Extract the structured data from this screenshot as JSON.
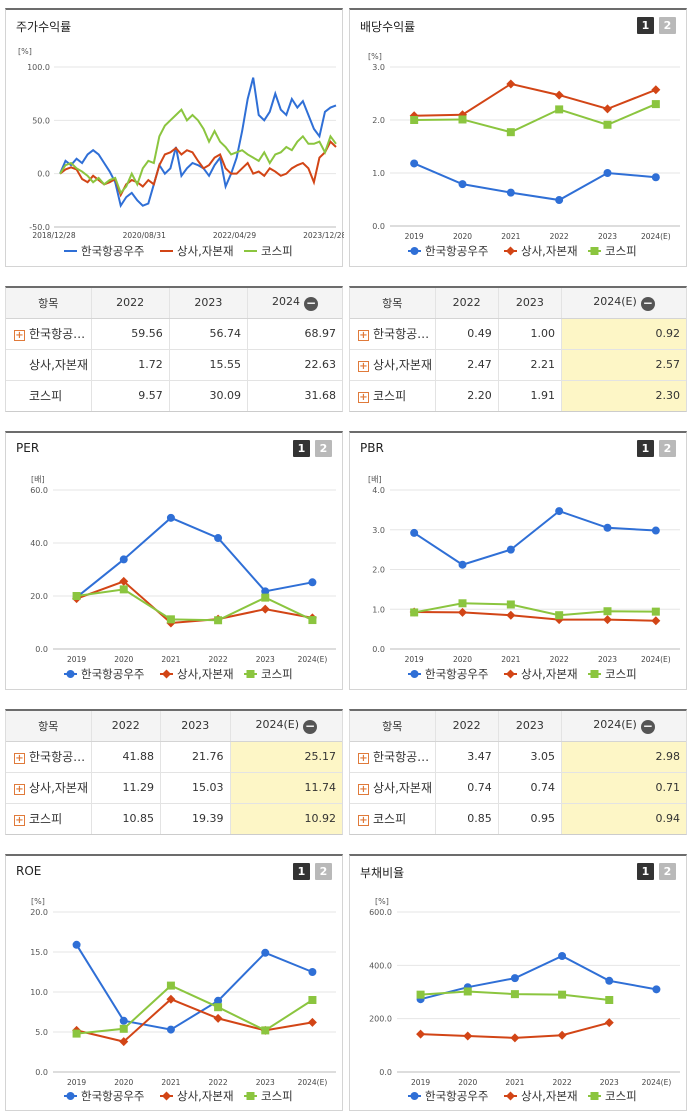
{
  "legend_names": [
    "한국항공우주",
    "상사,자본재",
    "코스피"
  ],
  "colors": {
    "company": "#2f6fd6",
    "sector": "#d24516",
    "kospi": "#8bc53f"
  },
  "pager": [
    "1",
    "2"
  ],
  "stock_card": {
    "title": "주가수익률",
    "chart_data": {
      "type": "line",
      "unit": "[%]",
      "yticks": [
        "100.0",
        "50.0",
        "0.0",
        "-50.0"
      ],
      "ylim": [
        -50,
        100
      ],
      "xticks": [
        "2018/12/28",
        "2020/08/31",
        "2022/04/29",
        "2023/12/28"
      ],
      "xtick_pos": [
        0,
        0.32,
        0.64,
        0.96
      ],
      "series": [
        {
          "name": "한국항공우주",
          "color": "#2f6fd6",
          "values": [
            0,
            12,
            8,
            14,
            10,
            18,
            22,
            18,
            10,
            2,
            -8,
            -30,
            -22,
            -18,
            -25,
            -30,
            -28,
            -10,
            8,
            0,
            5,
            25,
            -2,
            5,
            10,
            8,
            5,
            -2,
            8,
            15,
            -12,
            0,
            15,
            40,
            70,
            90,
            55,
            50,
            58,
            75,
            60,
            55,
            70,
            62,
            68,
            55,
            42,
            35,
            58,
            62,
            64
          ]
        },
        {
          "name": "상사,자본재",
          "color": "#d24516",
          "values": [
            0,
            4,
            6,
            4,
            -5,
            -8,
            -2,
            -6,
            -10,
            -8,
            -5,
            -20,
            -10,
            -6,
            -8,
            -12,
            -6,
            -10,
            8,
            18,
            20,
            24,
            18,
            22,
            20,
            12,
            5,
            8,
            15,
            18,
            5,
            0,
            0,
            5,
            10,
            0,
            2,
            -2,
            5,
            2,
            -2,
            0,
            5,
            8,
            10,
            5,
            -8,
            15,
            20,
            30,
            25
          ]
        },
        {
          "name": "코스피",
          "color": "#8bc53f",
          "values": [
            0,
            8,
            10,
            5,
            2,
            -2,
            -8,
            -4,
            -10,
            -6,
            -4,
            -18,
            -12,
            0,
            -10,
            5,
            12,
            10,
            35,
            45,
            50,
            55,
            60,
            50,
            55,
            50,
            42,
            30,
            40,
            30,
            25,
            18,
            20,
            22,
            18,
            15,
            12,
            20,
            10,
            18,
            20,
            25,
            22,
            30,
            35,
            28,
            28,
            30,
            20,
            35,
            28
          ]
        }
      ]
    }
  },
  "stock_table": {
    "header": [
      "항목",
      "2022",
      "2023",
      "2024"
    ],
    "rows": [
      {
        "name": "한국항공…",
        "plus": true,
        "values": [
          "59.56",
          "56.74",
          "68.97"
        ]
      },
      {
        "name": "상사,자본재",
        "plus": false,
        "values": [
          "1.72",
          "15.55",
          "22.63"
        ]
      },
      {
        "name": "코스피",
        "plus": false,
        "values": [
          "9.57",
          "30.09",
          "31.68"
        ]
      }
    ]
  },
  "div_card": {
    "title": "배당수익률",
    "chart_data": {
      "type": "line",
      "unit": "[%]",
      "yticks": [
        "3.0",
        "2.0",
        "1.0",
        "0.0"
      ],
      "ylim": [
        0,
        3
      ],
      "categories": [
        "2019",
        "2020",
        "2021",
        "2022",
        "2023",
        "2024(E)"
      ],
      "series": [
        {
          "name": "한국항공우주",
          "color": "#2f6fd6",
          "marker": "circle",
          "values": [
            1.18,
            0.79,
            0.63,
            0.49,
            1.0,
            0.92
          ]
        },
        {
          "name": "상사,자본재",
          "color": "#d24516",
          "marker": "diamond",
          "values": [
            2.08,
            2.1,
            2.68,
            2.47,
            2.21,
            2.57
          ]
        },
        {
          "name": "코스피",
          "color": "#8bc53f",
          "marker": "square",
          "values": [
            2.0,
            2.01,
            1.77,
            2.2,
            1.91,
            2.3
          ]
        }
      ]
    }
  },
  "div_table": {
    "header": [
      "항목",
      "2022",
      "2023",
      "2024(E)"
    ],
    "rows": [
      {
        "name": "한국항공…",
        "plus": true,
        "values": [
          "0.49",
          "1.00",
          "0.92"
        ]
      },
      {
        "name": "상사,자본재",
        "plus": true,
        "values": [
          "2.47",
          "2.21",
          "2.57"
        ]
      },
      {
        "name": "코스피",
        "plus": true,
        "values": [
          "2.20",
          "1.91",
          "2.30"
        ]
      }
    ]
  },
  "per_card": {
    "title": "PER",
    "chart_data": {
      "type": "line",
      "unit": "[배]",
      "yticks": [
        "60.0",
        "40.0",
        "20.0",
        "0.0"
      ],
      "ylim": [
        0,
        60
      ],
      "categories": [
        "2019",
        "2020",
        "2021",
        "2022",
        "2023",
        "2024(E)"
      ],
      "series": [
        {
          "name": "한국항공우주",
          "color": "#2f6fd6",
          "marker": "circle",
          "values": [
            19.5,
            33.8,
            49.5,
            41.88,
            21.76,
            25.17
          ]
        },
        {
          "name": "상사,자본재",
          "color": "#d24516",
          "marker": "diamond",
          "values": [
            19.0,
            25.5,
            9.8,
            11.29,
            15.03,
            11.74
          ]
        },
        {
          "name": "코스피",
          "color": "#8bc53f",
          "marker": "square",
          "values": [
            20.0,
            22.5,
            11.2,
            10.85,
            19.39,
            10.92
          ]
        }
      ]
    }
  },
  "per_table": {
    "header": [
      "항목",
      "2022",
      "2023",
      "2024(E)"
    ],
    "rows": [
      {
        "name": "한국항공…",
        "plus": true,
        "values": [
          "41.88",
          "21.76",
          "25.17"
        ]
      },
      {
        "name": "상사,자본재",
        "plus": true,
        "values": [
          "11.29",
          "15.03",
          "11.74"
        ]
      },
      {
        "name": "코스피",
        "plus": true,
        "values": [
          "10.85",
          "19.39",
          "10.92"
        ]
      }
    ]
  },
  "pbr_card": {
    "title": "PBR",
    "chart_data": {
      "type": "line",
      "unit": "[배]",
      "yticks": [
        "4.0",
        "3.0",
        "2.0",
        "1.0",
        "0.0"
      ],
      "ylim": [
        0,
        4
      ],
      "categories": [
        "2019",
        "2020",
        "2021",
        "2022",
        "2023",
        "2024(E)"
      ],
      "series": [
        {
          "name": "한국항공우주",
          "color": "#2f6fd6",
          "marker": "circle",
          "values": [
            2.92,
            2.12,
            2.5,
            3.47,
            3.05,
            2.98
          ]
        },
        {
          "name": "상사,자본재",
          "color": "#d24516",
          "marker": "diamond",
          "values": [
            0.93,
            0.92,
            0.85,
            0.74,
            0.74,
            0.71
          ]
        },
        {
          "name": "코스피",
          "color": "#8bc53f",
          "marker": "square",
          "values": [
            0.92,
            1.15,
            1.12,
            0.85,
            0.95,
            0.94
          ]
        }
      ]
    }
  },
  "pbr_table": {
    "header": [
      "항목",
      "2022",
      "2023",
      "2024(E)"
    ],
    "rows": [
      {
        "name": "한국항공…",
        "plus": true,
        "values": [
          "3.47",
          "3.05",
          "2.98"
        ]
      },
      {
        "name": "상사,자본재",
        "plus": true,
        "values": [
          "0.74",
          "0.74",
          "0.71"
        ]
      },
      {
        "name": "코스피",
        "plus": true,
        "values": [
          "0.85",
          "0.95",
          "0.94"
        ]
      }
    ]
  },
  "roe_card": {
    "title": "ROE",
    "chart_data": {
      "type": "line",
      "unit": "[%]",
      "yticks": [
        "20.0",
        "15.0",
        "10.0",
        "5.0",
        "0.0"
      ],
      "ylim": [
        0,
        20
      ],
      "categories": [
        "2019",
        "2020",
        "2021",
        "2022",
        "2023",
        "2024(E)"
      ],
      "series": [
        {
          "name": "한국항공우주",
          "color": "#2f6fd6",
          "marker": "circle",
          "values": [
            15.9,
            6.4,
            5.3,
            8.9,
            14.9,
            12.5
          ]
        },
        {
          "name": "상사,자본재",
          "color": "#d24516",
          "marker": "diamond",
          "values": [
            5.2,
            3.8,
            9.1,
            6.7,
            5.2,
            6.2
          ]
        },
        {
          "name": "코스피",
          "color": "#8bc53f",
          "marker": "square",
          "values": [
            4.8,
            5.4,
            10.8,
            8.1,
            5.2,
            9.0
          ]
        }
      ]
    }
  },
  "debt_card": {
    "title": "부채비율",
    "chart_data": {
      "type": "line",
      "unit": "[%]",
      "yticks": [
        "600.0",
        "400.0",
        "200.0",
        "0.0"
      ],
      "ylim": [
        0,
        600
      ],
      "categories": [
        "2019",
        "2020",
        "2021",
        "2022",
        "2023",
        "2024(E)"
      ],
      "series": [
        {
          "name": "한국항공우주",
          "color": "#2f6fd6",
          "marker": "circle",
          "values": [
            273,
            318,
            352,
            435,
            342,
            310
          ]
        },
        {
          "name": "상사,자본재",
          "color": "#d24516",
          "marker": "diamond",
          "values": [
            142,
            135,
            128,
            138,
            185,
            null
          ]
        },
        {
          "name": "코스피",
          "color": "#8bc53f",
          "marker": "square",
          "values": [
            290,
            302,
            292,
            290,
            270,
            null
          ]
        }
      ]
    }
  }
}
